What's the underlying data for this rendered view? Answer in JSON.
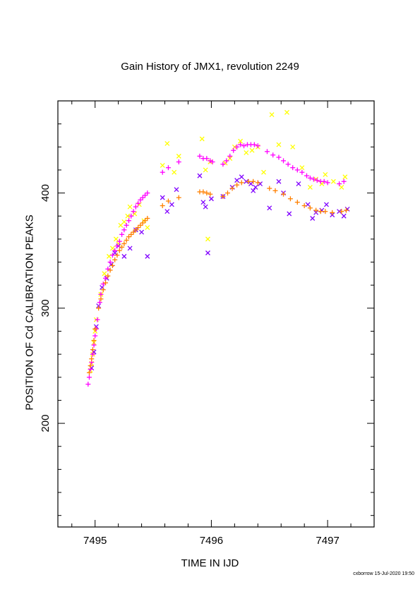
{
  "chart_data": {
    "type": "scatter",
    "title": "Gain History of JMX1, revolution 2249",
    "xlabel": "TIME IN IJD",
    "ylabel": "POSITION OF Cd CALIBRATION PEAKS",
    "xlim": [
      7494.68,
      7497.4
    ],
    "ylim": [
      110,
      480
    ],
    "xticks": [
      7495,
      7496,
      7497
    ],
    "yticks": [
      200,
      300,
      400
    ],
    "grid": false,
    "series": [
      {
        "marker": "x",
        "color": "#ffff00",
        "points": [
          [
            7494.96,
            246
          ],
          [
            7494.97,
            252
          ],
          [
            7494.98,
            260
          ],
          [
            7494.99,
            270
          ],
          [
            7495.0,
            280
          ],
          [
            7495.01,
            290
          ],
          [
            7495.05,
            312
          ],
          [
            7495.08,
            330
          ],
          [
            7495.12,
            345
          ],
          [
            7495.15,
            352
          ],
          [
            7495.18,
            360
          ],
          [
            7495.2,
            356
          ],
          [
            7495.22,
            372
          ],
          [
            7495.25,
            375
          ],
          [
            7495.28,
            380
          ],
          [
            7495.3,
            388
          ],
          [
            7495.34,
            382
          ],
          [
            7495.38,
            390
          ],
          [
            7495.42,
            376
          ],
          [
            7495.45,
            370
          ],
          [
            7495.58,
            424
          ],
          [
            7495.62,
            443
          ],
          [
            7495.68,
            418
          ],
          [
            7495.72,
            432
          ],
          [
            7495.92,
            447
          ],
          [
            7495.95,
            420
          ],
          [
            7495.97,
            360
          ],
          [
            7495.99,
            427
          ],
          [
            7496.12,
            426
          ],
          [
            7496.16,
            430
          ],
          [
            7496.2,
            440
          ],
          [
            7496.25,
            445
          ],
          [
            7496.3,
            435
          ],
          [
            7496.35,
            437
          ],
          [
            7496.4,
            440
          ],
          [
            7496.45,
            418
          ],
          [
            7496.52,
            468
          ],
          [
            7496.58,
            442
          ],
          [
            7496.65,
            470
          ],
          [
            7496.7,
            440
          ],
          [
            7496.78,
            422
          ],
          [
            7496.85,
            405
          ],
          [
            7496.9,
            412
          ],
          [
            7496.95,
            408
          ],
          [
            7496.98,
            416
          ],
          [
            7497.05,
            410
          ],
          [
            7497.12,
            405
          ],
          [
            7497.15,
            414
          ]
        ]
      },
      {
        "marker": "x",
        "color": "#8000ff",
        "points": [
          [
            7494.97,
            248
          ],
          [
            7494.99,
            262
          ],
          [
            7495.01,
            284
          ],
          [
            7495.03,
            302
          ],
          [
            7495.06,
            318
          ],
          [
            7495.1,
            326
          ],
          [
            7495.14,
            338
          ],
          [
            7495.17,
            348
          ],
          [
            7495.2,
            354
          ],
          [
            7495.25,
            345
          ],
          [
            7495.3,
            352
          ],
          [
            7495.35,
            368
          ],
          [
            7495.4,
            366
          ],
          [
            7495.45,
            345
          ],
          [
            7495.58,
            396
          ],
          [
            7495.62,
            384
          ],
          [
            7495.66,
            390
          ],
          [
            7495.7,
            403
          ],
          [
            7495.9,
            415
          ],
          [
            7495.93,
            392
          ],
          [
            7495.95,
            388
          ],
          [
            7495.97,
            348
          ],
          [
            7496.0,
            395
          ],
          [
            7496.1,
            397
          ],
          [
            7496.18,
            405
          ],
          [
            7496.22,
            411
          ],
          [
            7496.26,
            414
          ],
          [
            7496.3,
            410
          ],
          [
            7496.34,
            408
          ],
          [
            7496.36,
            402
          ],
          [
            7496.38,
            405
          ],
          [
            7496.42,
            408
          ],
          [
            7496.5,
            387
          ],
          [
            7496.58,
            410
          ],
          [
            7496.62,
            400
          ],
          [
            7496.67,
            382
          ],
          [
            7496.75,
            408
          ],
          [
            7496.83,
            390
          ],
          [
            7496.87,
            378
          ],
          [
            7496.9,
            383
          ],
          [
            7496.95,
            385
          ],
          [
            7496.99,
            390
          ],
          [
            7497.04,
            381
          ],
          [
            7497.1,
            384
          ],
          [
            7497.14,
            380
          ],
          [
            7497.17,
            386
          ]
        ]
      },
      {
        "marker": "+",
        "color": "#ff00ff",
        "points": [
          [
            7494.94,
            234
          ],
          [
            7494.95,
            240
          ],
          [
            7494.96,
            247
          ],
          [
            7494.97,
            253
          ],
          [
            7494.98,
            260
          ],
          [
            7494.99,
            268
          ],
          [
            7495.0,
            276
          ],
          [
            7495.01,
            282
          ],
          [
            7495.02,
            290
          ],
          [
            7495.04,
            305
          ],
          [
            7495.05,
            312
          ],
          [
            7495.07,
            321
          ],
          [
            7495.09,
            326
          ],
          [
            7495.11,
            334
          ],
          [
            7495.13,
            340
          ],
          [
            7495.15,
            346
          ],
          [
            7495.17,
            350
          ],
          [
            7495.19,
            354
          ],
          [
            7495.21,
            358
          ],
          [
            7495.23,
            364
          ],
          [
            7495.25,
            368
          ],
          [
            7495.27,
            372
          ],
          [
            7495.29,
            376
          ],
          [
            7495.31,
            380
          ],
          [
            7495.33,
            384
          ],
          [
            7495.35,
            388
          ],
          [
            7495.37,
            391
          ],
          [
            7495.39,
            394
          ],
          [
            7495.41,
            396
          ],
          [
            7495.43,
            398
          ],
          [
            7495.45,
            400
          ],
          [
            7495.58,
            418
          ],
          [
            7495.63,
            422
          ],
          [
            7495.72,
            427
          ],
          [
            7495.9,
            432
          ],
          [
            7495.93,
            430
          ],
          [
            7495.96,
            430
          ],
          [
            7495.99,
            428
          ],
          [
            7496.01,
            427
          ],
          [
            7496.1,
            425
          ],
          [
            7496.13,
            428
          ],
          [
            7496.16,
            432
          ],
          [
            7496.19,
            437
          ],
          [
            7496.22,
            440
          ],
          [
            7496.25,
            442
          ],
          [
            7496.28,
            441
          ],
          [
            7496.31,
            442
          ],
          [
            7496.34,
            442
          ],
          [
            7496.37,
            442
          ],
          [
            7496.4,
            441
          ],
          [
            7496.48,
            436
          ],
          [
            7496.53,
            433
          ],
          [
            7496.58,
            431
          ],
          [
            7496.62,
            428
          ],
          [
            7496.66,
            425
          ],
          [
            7496.7,
            422
          ],
          [
            7496.74,
            420
          ],
          [
            7496.78,
            418
          ],
          [
            7496.82,
            415
          ],
          [
            7496.85,
            413
          ],
          [
            7496.88,
            412
          ],
          [
            7496.91,
            411
          ],
          [
            7496.94,
            410
          ],
          [
            7496.97,
            410
          ],
          [
            7497.0,
            409
          ],
          [
            7497.1,
            408
          ],
          [
            7497.14,
            410
          ]
        ]
      },
      {
        "marker": "+",
        "color": "#ff8000",
        "points": [
          [
            7494.95,
            244
          ],
          [
            7494.96,
            250
          ],
          [
            7494.97,
            256
          ],
          [
            7494.98,
            264
          ],
          [
            7494.99,
            272
          ],
          [
            7495.0,
            282
          ],
          [
            7495.03,
            300
          ],
          [
            7495.05,
            308
          ],
          [
            7495.07,
            316
          ],
          [
            7495.09,
            322
          ],
          [
            7495.11,
            328
          ],
          [
            7495.13,
            333
          ],
          [
            7495.15,
            337
          ],
          [
            7495.17,
            342
          ],
          [
            7495.19,
            346
          ],
          [
            7495.21,
            350
          ],
          [
            7495.23,
            353
          ],
          [
            7495.25,
            356
          ],
          [
            7495.27,
            359
          ],
          [
            7495.29,
            362
          ],
          [
            7495.31,
            364
          ],
          [
            7495.33,
            366
          ],
          [
            7495.35,
            368
          ],
          [
            7495.37,
            370
          ],
          [
            7495.39,
            372
          ],
          [
            7495.41,
            374
          ],
          [
            7495.43,
            376
          ],
          [
            7495.45,
            378
          ],
          [
            7495.58,
            389
          ],
          [
            7495.63,
            393
          ],
          [
            7495.72,
            396
          ],
          [
            7495.9,
            401
          ],
          [
            7495.93,
            401
          ],
          [
            7495.96,
            400
          ],
          [
            7495.99,
            399
          ],
          [
            7496.1,
            397
          ],
          [
            7496.14,
            400
          ],
          [
            7496.18,
            404
          ],
          [
            7496.22,
            407
          ],
          [
            7496.26,
            409
          ],
          [
            7496.32,
            410
          ],
          [
            7496.36,
            410
          ],
          [
            7496.4,
            409
          ],
          [
            7496.5,
            404
          ],
          [
            7496.55,
            402
          ],
          [
            7496.62,
            399
          ],
          [
            7496.68,
            395
          ],
          [
            7496.74,
            392
          ],
          [
            7496.8,
            389
          ],
          [
            7496.85,
            387
          ],
          [
            7496.9,
            385
          ],
          [
            7496.94,
            384
          ],
          [
            7496.98,
            384
          ],
          [
            7497.04,
            383
          ],
          [
            7497.12,
            384
          ],
          [
            7497.16,
            385
          ]
        ]
      }
    ]
  },
  "footer": {
    "credit": "cxborrow 15-Jul-2020 19:50"
  }
}
